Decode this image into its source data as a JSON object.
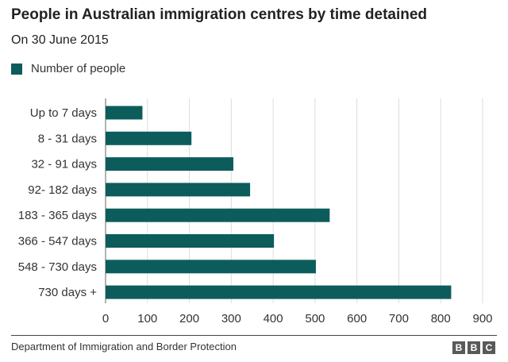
{
  "title": "People in Australian immigration centres by time detained",
  "subtitle": "On 30 June 2015",
  "legend_label": "Number of people",
  "bar_color": "#0d5c5c",
  "source": "Department of Immigration and Border Protection",
  "logo": [
    "B",
    "B",
    "C"
  ],
  "chart_data": {
    "type": "bar",
    "orientation": "horizontal",
    "categories": [
      "Up to 7 days",
      "8 - 31 days",
      "32 - 91 days",
      "92- 182 days",
      "183 - 365 days",
      "366 - 547 days",
      "548 - 730 days",
      "730 days +"
    ],
    "series": [
      {
        "name": "Number of people",
        "values": [
          88,
          205,
          305,
          345,
          535,
          402,
          502,
          825
        ]
      }
    ],
    "xlim": [
      0,
      900
    ],
    "xticks": [
      0,
      100,
      200,
      300,
      400,
      500,
      600,
      700,
      800,
      900
    ],
    "grid": true,
    "legend": "top-left"
  }
}
